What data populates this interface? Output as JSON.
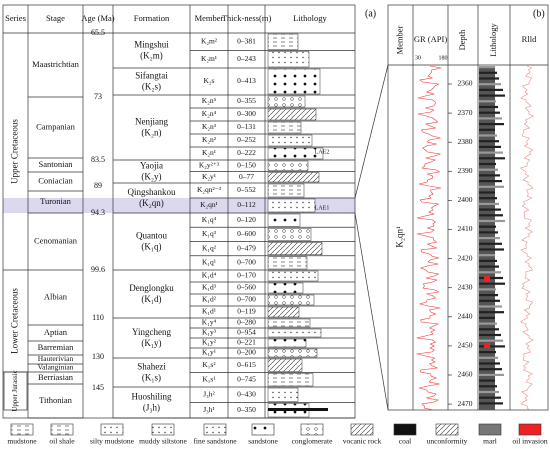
{
  "panel_a": {
    "label": "(a)",
    "headers": [
      "Series",
      "Stage",
      "Age (Ma)",
      "Formation",
      "Member",
      "Thick-ness(m)",
      "Lithology"
    ],
    "series": [
      "Upper Cretaceous",
      "Lower Cretaceous",
      "Upper Jurassic"
    ],
    "stages": [
      "Maastrichtian",
      "Campanian",
      "Santonian",
      "Coniacian",
      "Turonian",
      "Cenomanian",
      "Albian",
      "Aptian",
      "Barremian",
      "Hauterivian",
      "Valanginian",
      "Berriasian",
      "Tithonian"
    ],
    "ages": [
      "65.5",
      "73",
      "83.5",
      "89",
      "94.3",
      "99.6",
      "110",
      "130",
      "145"
    ],
    "formations": [
      {
        "name": "Mingshui",
        "code": "(K₂m)"
      },
      {
        "name": "Sifangtai",
        "code": "(K₂s)"
      },
      {
        "name": "Nenjiang",
        "code": "(K₂n)"
      },
      {
        "name": "Yaojia",
        "code": "(K₂y)"
      },
      {
        "name": "Qingshankou",
        "code": "(K₂qn)"
      },
      {
        "name": "Quantou",
        "code": "(K₁q)"
      },
      {
        "name": "Denglongku",
        "code": "(K₁d)"
      },
      {
        "name": "Yingcheng",
        "code": "(K₁y)"
      },
      {
        "name": "Shahezi",
        "code": "(K₁s)"
      },
      {
        "name": "Huoshiling",
        "code": "(J₃h)"
      }
    ],
    "members": [
      {
        "code": "K₂m²",
        "thickness": "0–381"
      },
      {
        "code": "K₂m¹",
        "thickness": "0–243"
      },
      {
        "code": "K₂s",
        "thickness": "0–413"
      },
      {
        "code": "K₂n⁵",
        "thickness": "0–355"
      },
      {
        "code": "K₂n⁴",
        "thickness": "0–300"
      },
      {
        "code": "K₂n³",
        "thickness": "0–131"
      },
      {
        "code": "K₂n²",
        "thickness": "0–252"
      },
      {
        "code": "K₂n¹",
        "thickness": "0–222"
      },
      {
        "code": "K₂y²⁺³",
        "thickness": "0–150"
      },
      {
        "code": "K₂y¹",
        "thickness": "0–77"
      },
      {
        "code": "K₂qn²⁻³",
        "thickness": "0–552"
      },
      {
        "code": "K₂qn¹",
        "thickness": "0–112"
      },
      {
        "code": "K₁q⁴",
        "thickness": "0–120"
      },
      {
        "code": "K₁q³",
        "thickness": "0–600"
      },
      {
        "code": "K₁q²",
        "thickness": "0–479"
      },
      {
        "code": "K₁q¹",
        "thickness": "0–700"
      },
      {
        "code": "K₁d⁴",
        "thickness": "0–170"
      },
      {
        "code": "K₁d³",
        "thickness": "0–560"
      },
      {
        "code": "K₁d²",
        "thickness": "0–700"
      },
      {
        "code": "K₁d¹",
        "thickness": "0–119"
      },
      {
        "code": "K₁y⁴",
        "thickness": "0–280"
      },
      {
        "code": "K₁y³",
        "thickness": "0–954"
      },
      {
        "code": "K₁y²",
        "thickness": "0–221"
      },
      {
        "code": "K₁y¹",
        "thickness": "0–200"
      },
      {
        "code": "K₁s²",
        "thickness": "0–615"
      },
      {
        "code": "K₁s¹",
        "thickness": "0–745"
      },
      {
        "code": "J₃h²",
        "thickness": "0–430"
      },
      {
        "code": "J₃h¹",
        "thickness": "0–350"
      }
    ],
    "annotations": [
      "LAE2",
      "LAE1"
    ]
  },
  "panel_b": {
    "label": "(b)",
    "headers": [
      "Member",
      "GR (API)",
      "Depth",
      "Lithology",
      "Rlld"
    ],
    "gr_range": [
      "30",
      "180"
    ],
    "member": "K₂qn¹",
    "depths": [
      "2360",
      "2370",
      "2380",
      "2390",
      "2400",
      "2410",
      "2420",
      "2430",
      "2440",
      "2450",
      "2460",
      "2470"
    ]
  },
  "legend": [
    "mudstone",
    "oil shale",
    "silty mudstone",
    "muddy siltstone",
    "fine sandstone",
    "sandstone",
    "conglomerate",
    "vocanic rock",
    "coal",
    "unconformity",
    "marl",
    "oil invasion"
  ]
}
